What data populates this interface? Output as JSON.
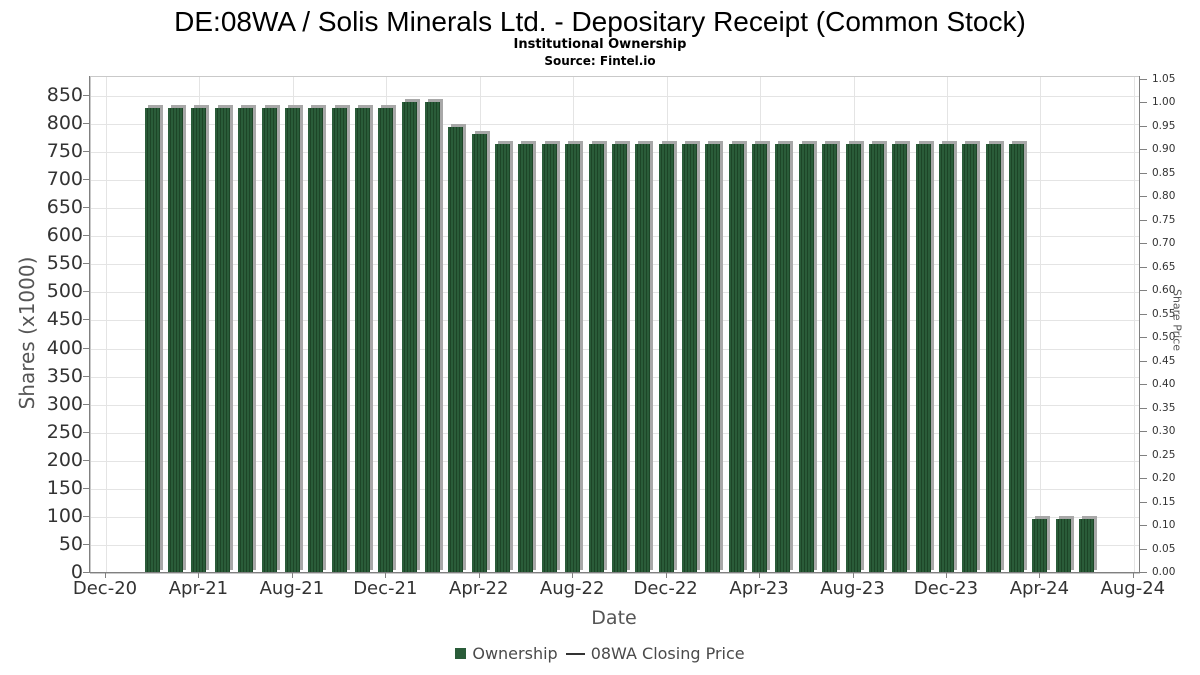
{
  "header": {
    "title": "DE:08WA / Solis Minerals Ltd. - Depositary Receipt (Common Stock)",
    "subtitle": "Institutional Ownership",
    "source": "Source: Fintel.io"
  },
  "chart_data": {
    "type": "bar",
    "title": "DE:08WA / Solis Minerals Ltd. - Depositary Receipt (Common Stock)",
    "subtitle": "Institutional Ownership",
    "source": "Source: Fintel.io",
    "xlabel": "Date",
    "ylabel_left": "Shares (x1000)",
    "ylabel_right": "Share Price",
    "grid": true,
    "legend_position": "bottom",
    "x_axis": {
      "start": "Dec-20",
      "end": "Aug-24",
      "tick_labels": [
        "Dec-20",
        "Apr-21",
        "Aug-21",
        "Dec-21",
        "Apr-22",
        "Aug-22",
        "Dec-22",
        "Apr-23",
        "Aug-23",
        "Dec-23",
        "Apr-24",
        "Aug-24"
      ]
    },
    "y_axis_left": {
      "min": 0,
      "max": 850,
      "step": 50,
      "tick_labels": [
        "0",
        "50",
        "100",
        "150",
        "200",
        "250",
        "300",
        "350",
        "400",
        "450",
        "500",
        "550",
        "600",
        "650",
        "700",
        "750",
        "800",
        "850"
      ]
    },
    "y_axis_right": {
      "min": 0.0,
      "max": 1.05,
      "step": 0.05,
      "tick_labels": [
        "0.00",
        "0.05",
        "0.10",
        "0.15",
        "0.20",
        "0.25",
        "0.30",
        "0.35",
        "0.40",
        "0.45",
        "0.50",
        "0.55",
        "0.60",
        "0.65",
        "0.70",
        "0.75",
        "0.80",
        "0.85",
        "0.90",
        "0.95",
        "1.00",
        "1.05"
      ]
    },
    "legend": [
      {
        "label": "Ownership",
        "marker": "square",
        "color": "#2a5c39"
      },
      {
        "label": "08WA Closing Price",
        "marker": "line",
        "color": "#333333"
      }
    ],
    "series": [
      {
        "name": "Ownership",
        "type": "bar",
        "unit": "shares x1000",
        "color": "#2a5c39",
        "categories": [
          "Feb-21",
          "Mar-21",
          "Apr-21",
          "May-21",
          "Jun-21",
          "Jul-21",
          "Aug-21",
          "Sep-21",
          "Oct-21",
          "Nov-21",
          "Dec-21",
          "Jan-22",
          "Feb-22",
          "Mar-22",
          "Apr-22",
          "May-22",
          "Jun-22",
          "Jul-22",
          "Aug-22",
          "Sep-22",
          "Oct-22",
          "Nov-22",
          "Dec-22",
          "Jan-23",
          "Feb-23",
          "Mar-23",
          "Apr-23",
          "May-23",
          "Jun-23",
          "Jul-23",
          "Aug-23",
          "Sep-23",
          "Oct-23",
          "Nov-23",
          "Dec-23",
          "Jan-24",
          "Feb-24",
          "Mar-24",
          "Apr-24",
          "May-24",
          "Jun-24"
        ],
        "values": [
          828,
          828,
          828,
          828,
          828,
          828,
          828,
          828,
          828,
          828,
          828,
          840,
          840,
          795,
          783,
          765,
          765,
          765,
          765,
          765,
          765,
          765,
          765,
          765,
          765,
          765,
          765,
          765,
          765,
          765,
          765,
          765,
          765,
          765,
          765,
          765,
          765,
          765,
          97,
          97,
          97
        ]
      }
    ],
    "colors": {
      "bar": "#2a5c39",
      "bar_stripe": "#1d4527",
      "bar_shadow": "#a8a8a8",
      "grid": "#e4e4e4",
      "axis": "#808080",
      "tick_text": "#333333",
      "axis_title_text": "#555555"
    }
  }
}
